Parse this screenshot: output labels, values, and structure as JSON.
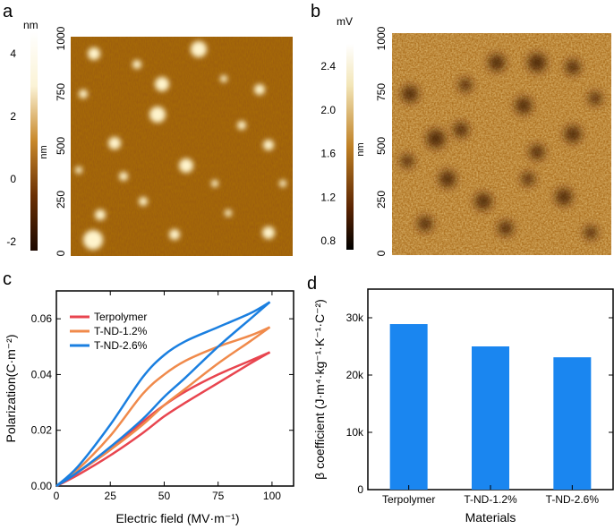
{
  "panels": {
    "a": {
      "letter": "a",
      "colorbar_unit": "nm",
      "colorbar_ticks": [
        "4",
        "2",
        "0",
        "-2"
      ],
      "axis_label": "nm",
      "axis_ticks": [
        "1000",
        "750",
        "500",
        "250",
        "0"
      ]
    },
    "b": {
      "letter": "b",
      "colorbar_unit": "mV",
      "colorbar_ticks": [
        "2.4",
        "2.0",
        "1.6",
        "1.2",
        "0.8"
      ],
      "axis_label": "nm",
      "axis_ticks": [
        "1000",
        "750",
        "500",
        "250",
        "0"
      ]
    },
    "c": {
      "letter": "c"
    },
    "d": {
      "letter": "d"
    }
  },
  "colors": {
    "terpolymer": "#e8454f",
    "t_nd_1_2": "#f08a4b",
    "t_nd_2_6": "#1a7fe0",
    "bar": "#1a86f0",
    "afm_dark": "#3a1600",
    "afm_mid": "#b36b12",
    "afm_light": "#f5e6b0"
  },
  "chart_data": [
    {
      "panel": "c",
      "type": "line",
      "xlabel": "Electric field (MV·m⁻¹)",
      "ylabel": "Polarization(C·m⁻²)",
      "xlim": [
        0,
        110
      ],
      "ylim": [
        0,
        0.07
      ],
      "xticks": [
        0,
        25,
        50,
        75,
        100
      ],
      "xtick_labels": [
        "0",
        "25",
        "50",
        "75",
        "100"
      ],
      "yticks": [
        0,
        0.02,
        0.04,
        0.06
      ],
      "ytick_labels": [
        "0.00",
        "0.02",
        "0.04",
        "0.06"
      ],
      "grid": false,
      "legend": "top-left",
      "series": [
        {
          "name": "Terpolymer",
          "charge": [
            [
              0,
              0
            ],
            [
              10,
              0.004
            ],
            [
              25,
              0.011
            ],
            [
              40,
              0.019
            ],
            [
              50,
              0.025
            ],
            [
              60,
              0.03
            ],
            [
              75,
              0.037
            ],
            [
              90,
              0.044
            ],
            [
              99,
              0.048
            ]
          ],
          "discharge": [
            [
              99,
              0.048
            ],
            [
              90,
              0.045
            ],
            [
              75,
              0.04
            ],
            [
              60,
              0.034
            ],
            [
              50,
              0.029
            ],
            [
              40,
              0.023
            ],
            [
              25,
              0.013
            ],
            [
              10,
              0.005
            ],
            [
              0,
              0
            ]
          ]
        },
        {
          "name": "T-ND-1.2%",
          "charge": [
            [
              0,
              0
            ],
            [
              10,
              0.005
            ],
            [
              25,
              0.013
            ],
            [
              40,
              0.022
            ],
            [
              50,
              0.029
            ],
            [
              60,
              0.035
            ],
            [
              75,
              0.044
            ],
            [
              90,
              0.052
            ],
            [
              99,
              0.057
            ]
          ],
          "discharge": [
            [
              99,
              0.057
            ],
            [
              90,
              0.054
            ],
            [
              75,
              0.05
            ],
            [
              60,
              0.045
            ],
            [
              50,
              0.04
            ],
            [
              40,
              0.033
            ],
            [
              25,
              0.018
            ],
            [
              10,
              0.006
            ],
            [
              0,
              0
            ]
          ]
        },
        {
          "name": "T-ND-2.6%",
          "charge": [
            [
              0,
              0
            ],
            [
              10,
              0.005
            ],
            [
              25,
              0.014
            ],
            [
              40,
              0.024
            ],
            [
              50,
              0.032
            ],
            [
              60,
              0.039
            ],
            [
              75,
              0.05
            ],
            [
              90,
              0.06
            ],
            [
              99,
              0.066
            ]
          ],
          "discharge": [
            [
              99,
              0.066
            ],
            [
              90,
              0.062
            ],
            [
              75,
              0.057
            ],
            [
              60,
              0.052
            ],
            [
              50,
              0.047
            ],
            [
              40,
              0.039
            ],
            [
              25,
              0.022
            ],
            [
              10,
              0.007
            ],
            [
              0,
              0
            ]
          ]
        }
      ]
    },
    {
      "panel": "d",
      "type": "bar",
      "xlabel": "Materials",
      "ylabel": "β coefficient (J·m⁴·kg⁻¹·K⁻¹·C⁻²)",
      "categories": [
        "Terpolymer",
        "T-ND-1.2%",
        "T-ND-2.6%"
      ],
      "values": [
        28900,
        25000,
        23100
      ],
      "ylim": [
        0,
        35000
      ],
      "yticks": [
        0,
        10000,
        20000,
        30000
      ],
      "ytick_labels": [
        "0",
        "10k",
        "20k",
        "30k"
      ],
      "grid": false
    }
  ]
}
